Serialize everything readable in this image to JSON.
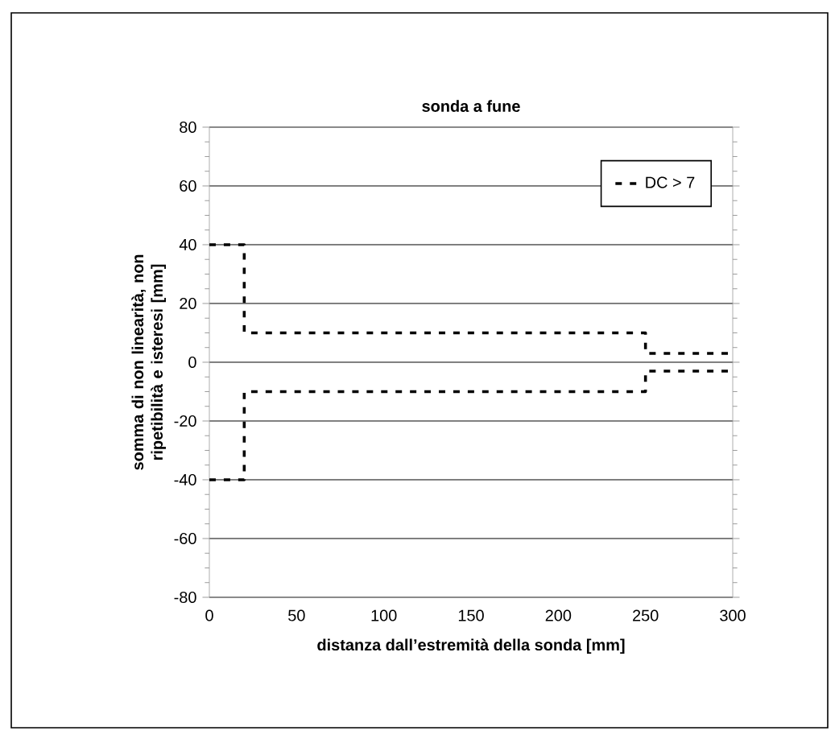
{
  "chart_data": {
    "type": "step",
    "title": "sonda a fune",
    "xlabel": "distanza dall’estremità della sonda [mm]",
    "ylabel": "somma di non linearità, non ripetibilità e isteresi [mm]",
    "series": [
      {
        "name": "DC > 7",
        "color": "#000000",
        "x": [
          0,
          20,
          250,
          300
        ],
        "values": [
          40,
          10,
          3,
          3
        ]
      },
      {
        "color": "#000000",
        "x": [
          0,
          20,
          250,
          300
        ],
        "values": [
          -40,
          -10,
          -3,
          -3
        ]
      }
    ],
    "xlim": [
      0,
      300
    ],
    "xticks": [
      0,
      50,
      100,
      150,
      200,
      250,
      300
    ],
    "ylim": [
      -80,
      80
    ],
    "yticks": [
      -80,
      -60,
      -40,
      -20,
      0,
      20,
      40,
      60,
      80
    ],
    "grid": "y",
    "legend": "top right",
    "line_style": "dashed",
    "marker": "none"
  }
}
